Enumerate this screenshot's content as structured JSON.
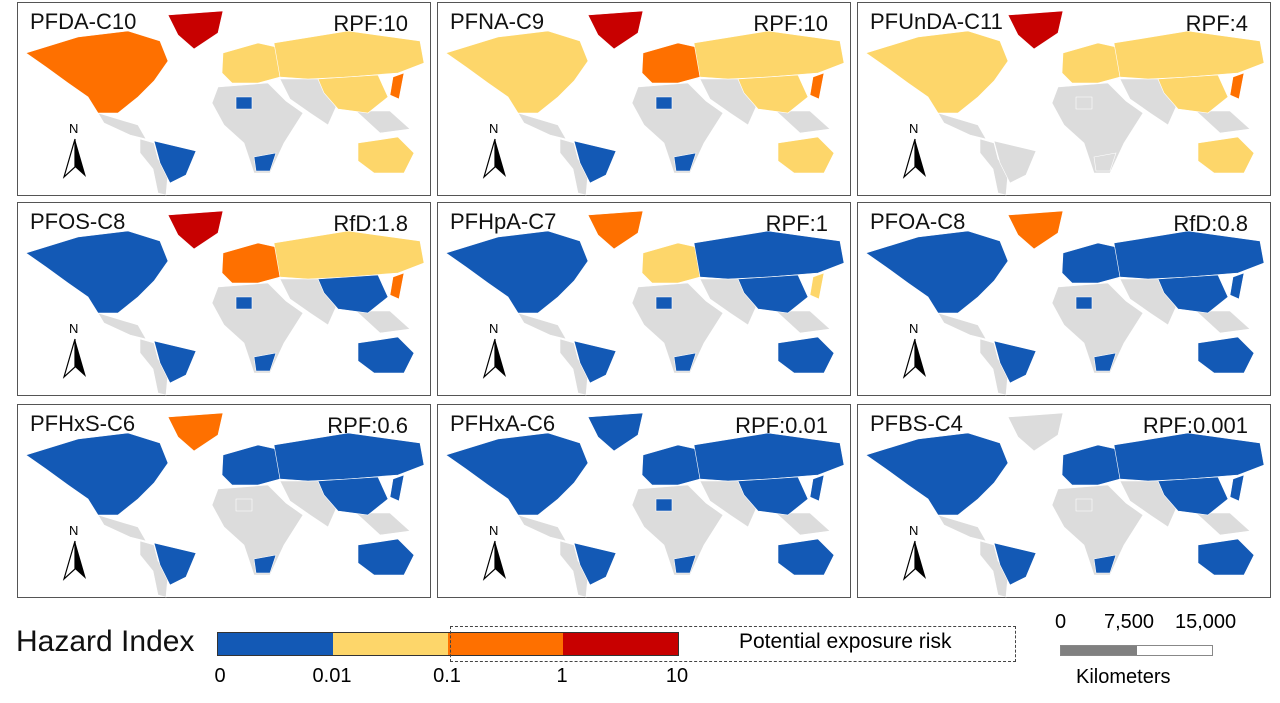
{
  "colors": {
    "class0": "#1359b5",
    "class1": "#fdd66a",
    "class2": "#fe7000",
    "class3": "#c80000",
    "nodata": "#dcdcdc",
    "border": "#ffffff"
  },
  "north_label": "N",
  "panels": [
    {
      "title": "PFDA-C10",
      "value": "RPF:10",
      "regions": {
        "north_america": 2,
        "greenland": 3,
        "europe": 1,
        "russia": 1,
        "china": 1,
        "japan": 2,
        "brazil": 0,
        "australia": 1,
        "south_africa": 0,
        "libya": 0
      }
    },
    {
      "title": "PFNA-C9",
      "value": "RPF:10",
      "regions": {
        "north_america": 1,
        "greenland": 3,
        "europe": 2,
        "russia": 1,
        "china": 1,
        "japan": 2,
        "brazil": 0,
        "australia": 1,
        "south_africa": 0,
        "libya": 0
      }
    },
    {
      "title": "PFUnDA-C11",
      "value": "RPF:4",
      "regions": {
        "north_america": 1,
        "greenland": 3,
        "europe": 1,
        "russia": 1,
        "china": 1,
        "japan": 2,
        "brazil": -1,
        "australia": 1,
        "south_africa": -1,
        "libya": -1
      }
    },
    {
      "title": "PFOS-C8",
      "value": "RfD:1.8",
      "regions": {
        "north_america": 0,
        "greenland": 3,
        "europe": 2,
        "russia": 1,
        "china": 0,
        "japan": 2,
        "brazil": 0,
        "australia": 0,
        "south_africa": 0,
        "libya": 0
      }
    },
    {
      "title": "PFHpA-C7",
      "value": "RPF:1",
      "regions": {
        "north_america": 0,
        "greenland": 2,
        "europe": 1,
        "russia": 0,
        "china": 0,
        "japan": 1,
        "brazil": 0,
        "australia": 0,
        "south_africa": 0,
        "libya": 0
      }
    },
    {
      "title": "PFOA-C8",
      "value": "RfD:0.8",
      "regions": {
        "north_america": 0,
        "greenland": 2,
        "europe": 0,
        "russia": 0,
        "china": 0,
        "japan": 0,
        "brazil": 0,
        "australia": 0,
        "south_africa": 0,
        "libya": 0
      }
    },
    {
      "title": "PFHxS-C6",
      "value": "RPF:0.6",
      "regions": {
        "north_america": 0,
        "greenland": 2,
        "europe": 0,
        "russia": 0,
        "china": 0,
        "japan": 0,
        "brazil": 0,
        "australia": 0,
        "south_africa": 0,
        "libya": -1
      }
    },
    {
      "title": "PFHxA-C6",
      "value": "RPF:0.01",
      "regions": {
        "north_america": 0,
        "greenland": 0,
        "europe": 0,
        "russia": 0,
        "china": 0,
        "japan": 0,
        "brazil": 0,
        "australia": 0,
        "south_africa": 0,
        "libya": 0
      }
    },
    {
      "title": "PFBS-C4",
      "value": "RPF:0.001",
      "regions": {
        "north_america": 0,
        "greenland": -1,
        "europe": 0,
        "russia": 0,
        "china": 0,
        "japan": 0,
        "brazil": 0,
        "australia": 0,
        "south_africa": 0,
        "libya": -1
      }
    }
  ],
  "legend": {
    "title": "Hazard Index",
    "ticks": [
      "0",
      "0.01",
      "0.1",
      "1",
      "10"
    ],
    "risk_label": "Potential exposure risk"
  },
  "scale": {
    "ticks": [
      "0",
      "7,500",
      "15,000"
    ],
    "unit": "Kilometers"
  }
}
